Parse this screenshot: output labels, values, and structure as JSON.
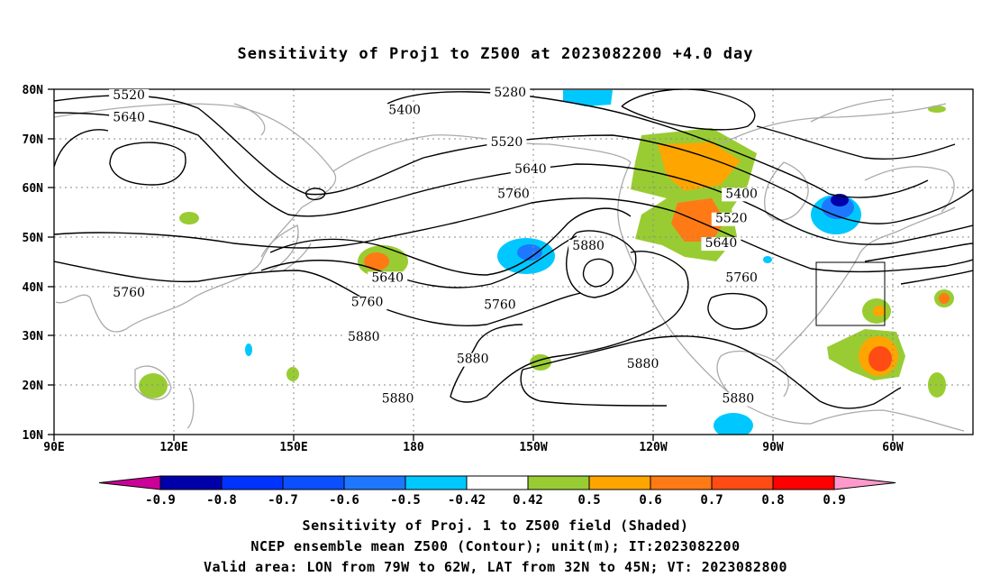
{
  "title": "Sensitivity of Proj1 to Z500 at 2023082200 +4.0 day",
  "lat_labels": [
    "80N",
    "70N",
    "60N",
    "50N",
    "40N",
    "30N",
    "20N",
    "10N"
  ],
  "lon_labels": [
    "90E",
    "120E",
    "150E",
    "180",
    "150W",
    "120W",
    "90W",
    "60W"
  ],
  "contour_labels": [
    {
      "text": "5520",
      "lon": 112,
      "lat": 78
    },
    {
      "text": "5640",
      "lon": 112,
      "lat": 73.5
    },
    {
      "text": "5280",
      "lon": 224,
      "lat": 78.5
    },
    {
      "text": "5400",
      "lon": 193,
      "lat": 75
    },
    {
      "text": "5520",
      "lon": 223,
      "lat": 68.5
    },
    {
      "text": "5640",
      "lon": 230,
      "lat": 63
    },
    {
      "text": "5760",
      "lon": 225,
      "lat": 58
    },
    {
      "text": "5400",
      "lon": 292,
      "lat": 58
    },
    {
      "text": "5520",
      "lon": 289,
      "lat": 53
    },
    {
      "text": "5640",
      "lon": 286,
      "lat": 48
    },
    {
      "text": "5760",
      "lon": 292,
      "lat": 41
    },
    {
      "text": "5880",
      "lon": 247,
      "lat": 47.5
    },
    {
      "text": "5640",
      "lon": 188,
      "lat": 41
    },
    {
      "text": "5760",
      "lon": 182,
      "lat": 36
    },
    {
      "text": "5760",
      "lon": 221,
      "lat": 35.5
    },
    {
      "text": "5760",
      "lon": 112,
      "lat": 38
    },
    {
      "text": "5880",
      "lon": 181,
      "lat": 29
    },
    {
      "text": "5880",
      "lon": 213,
      "lat": 24.5
    },
    {
      "text": "5880",
      "lon": 191,
      "lat": 16.5
    },
    {
      "text": "5880",
      "lon": 263,
      "lat": 23.5
    },
    {
      "text": "5880",
      "lon": 291,
      "lat": 16.5
    }
  ],
  "colorbar": {
    "labels": [
      "-0.9",
      "-0.8",
      "-0.7",
      "-0.6",
      "-0.5",
      "-0.42",
      "0.42",
      "0.5",
      "0.6",
      "0.7",
      "0.8",
      "0.9"
    ],
    "colors": [
      "#0000aa",
      "#0033ff",
      "#0a50ff",
      "#1e78ff",
      "#00c8ff",
      "#ffffff",
      "#99cc33",
      "#ffa500",
      "#ff7a14",
      "#ff4b14",
      "#ff0000"
    ],
    "low_color": "#cc0099",
    "high_color": "#ff99cc"
  },
  "captions": [
    "Sensitivity of Proj. 1 to Z500 field (Shaded)",
    "NCEP ensemble mean Z500 (Contour); unit(m); IT:2023082200",
    "Valid area: LON from 79W to 62W, LAT from 32N to 45N; VT: 2023082800"
  ]
}
